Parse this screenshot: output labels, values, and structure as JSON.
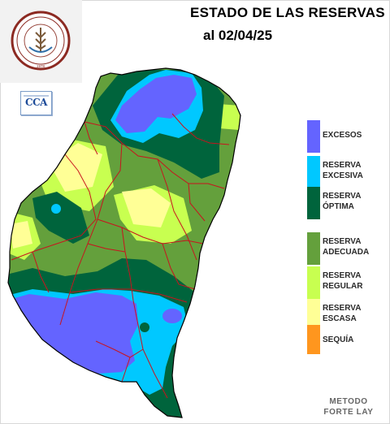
{
  "header": {
    "title": "ESTADO DE LAS RESERVAS",
    "date": "al 02/04/25"
  },
  "logos": {
    "bolsa_seal_text": "BOLSA DE CEREALES DE ENTRE RIOS",
    "bolsa_seal_year": "1978",
    "cca": "CCA"
  },
  "legend": [
    {
      "label": "EXCESOS",
      "color": "#6464ff"
    },
    {
      "label": "RESERVA\nEXCESIVA",
      "color": "#00c8ff"
    },
    {
      "label": "RESERVA\nÓPTIMA",
      "color": "#00643c"
    },
    {
      "label": "RESERVA\nADECUADA",
      "color": "#64a03c"
    },
    {
      "label": "RESERVA\nREGULAR",
      "color": "#c8ff50"
    },
    {
      "label": "RESERVA\nESCASA",
      "color": "#ffff96"
    },
    {
      "label": "SEQUÍA",
      "color": "#ff961e"
    }
  ],
  "footer": {
    "method": "METODO\nFORTE LAY"
  },
  "colors": {
    "department_borders": "#c8141e",
    "province_outline": "#000000"
  }
}
